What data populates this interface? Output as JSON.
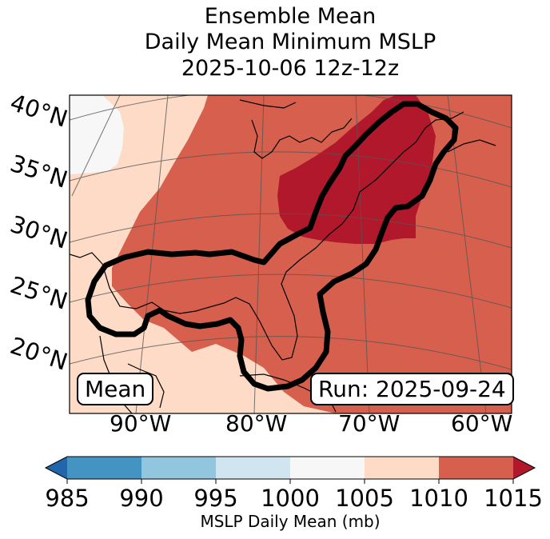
{
  "title": {
    "line1": "Ensemble Mean",
    "line2": "Daily Mean Minimum MSLP",
    "line3": "2025-10-06 12z-12z"
  },
  "map": {
    "region": "Eastern United States, Gulf of Mexico and western Atlantic",
    "lat_labels": [
      "40°N",
      "35°N",
      "30°N",
      "25°N",
      "20°N"
    ],
    "lon_labels": [
      "90°W",
      "80°W",
      "70°W",
      "60°W"
    ],
    "shading_variable": "ensemble mean daily mean MSLP",
    "contour": "black outline of the area of interest"
  },
  "boxes": {
    "left": "Mean",
    "right": "Run: 2025-09-24"
  },
  "colorbar": {
    "ticks": [
      "985",
      "990",
      "995",
      "1000",
      "1005",
      "1010",
      "1015"
    ],
    "label": "MSLP Daily Mean (mb)",
    "colors": {
      "under": "#2166ac",
      "c985_990": "#4393c3",
      "c990_995": "#92c5de",
      "c995_1000": "#d1e5f0",
      "c1000_1005": "#f7f7f7",
      "c1005_1010": "#fddbc7",
      "c1010_1015": "#d6604d",
      "over": "#b2182b"
    }
  }
}
